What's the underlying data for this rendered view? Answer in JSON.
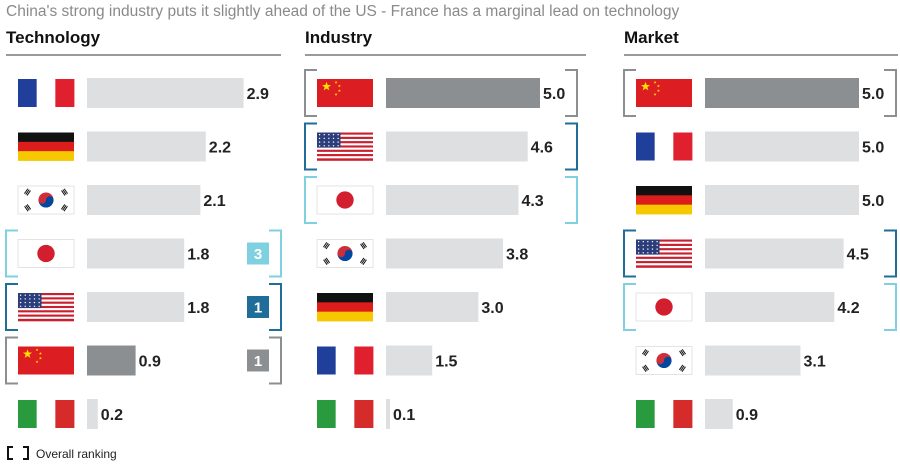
{
  "title": "China's strong industry puts it slightly ahead of the US - France has a marginal lead on technology",
  "legend": {
    "label": "Overall ranking"
  },
  "colors": {
    "bar": "#dedfe1",
    "bar_china": "#8c8f91",
    "rank_gold": "#8c8f91",
    "rank_silver": "#1f6e99",
    "rank_bronze": "#7fd0e0",
    "rule": "#9a9a9a"
  },
  "chart_data": [
    {
      "type": "bar",
      "title": "Technology",
      "categories": [
        "France",
        "Germany",
        "South Korea",
        "Japan",
        "USA",
        "China",
        "Italy"
      ],
      "values": [
        2.9,
        2.2,
        2.1,
        1.8,
        1.8,
        0.9,
        0.2
      ],
      "labels": [
        "2.9",
        "2.2",
        "2.1",
        "1.8",
        "1.8",
        "0.9",
        "0.2"
      ],
      "xlim": [
        0,
        5.0
      ],
      "highlight": "China",
      "overall_ranking_brackets": {
        "Japan": 3,
        "USA": 1,
        "China": 1
      },
      "overall_ranking_badges": {
        "Japan": "3",
        "USA": "1",
        "China": "1"
      }
    },
    {
      "type": "bar",
      "title": "Industry",
      "categories": [
        "China",
        "USA",
        "Japan",
        "South Korea",
        "Germany",
        "France",
        "Italy"
      ],
      "values": [
        5.0,
        4.6,
        4.3,
        3.8,
        3.0,
        1.5,
        0.1
      ],
      "labels": [
        "5.0",
        "4.6",
        "4.3",
        "3.8",
        "3.0",
        "1.5",
        "0.1"
      ],
      "xlim": [
        0,
        5.0
      ],
      "highlight": "China",
      "overall_ranking_brackets": {
        "China": 1,
        "USA": 1,
        "Japan": 3
      }
    },
    {
      "type": "bar",
      "title": "Market",
      "categories": [
        "China",
        "France",
        "Germany",
        "USA",
        "Japan",
        "South Korea",
        "Italy"
      ],
      "values": [
        5.0,
        5.0,
        5.0,
        4.5,
        4.2,
        3.1,
        0.9
      ],
      "labels": [
        "5.0",
        "5.0",
        "5.0",
        "4.5",
        "4.2",
        "3.1",
        "0.9"
      ],
      "xlim": [
        0,
        5.0
      ],
      "highlight": "China",
      "overall_ranking_brackets": {
        "China": 1,
        "USA": 1,
        "Japan": 3
      }
    }
  ]
}
